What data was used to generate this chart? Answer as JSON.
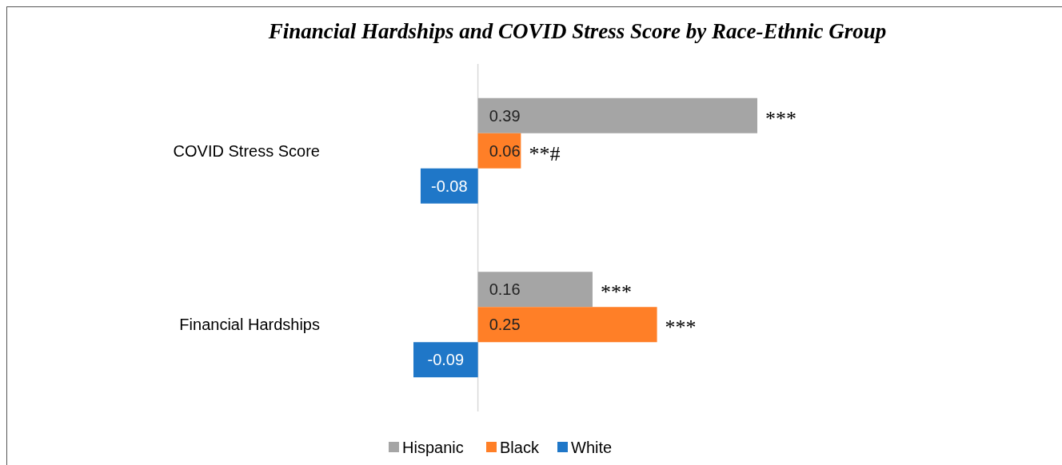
{
  "chart_data": {
    "type": "bar",
    "orientation": "horizontal",
    "title": "Financial Hardships and COVID Stress Score by Race-Ethnic Group",
    "categories": [
      "COVID Stress Score",
      "Financial Hardships"
    ],
    "series": [
      {
        "name": "Hispanic",
        "color": "#a5a5a5",
        "values": [
          0.39,
          0.16
        ]
      },
      {
        "name": "Black",
        "color": "#ff7f27",
        "values": [
          0.06,
          0.25
        ]
      },
      {
        "name": "White",
        "color": "#1f77c8",
        "values": [
          -0.08,
          -0.09
        ]
      }
    ],
    "data_labels": true,
    "legend": "bottom",
    "annotations": [
      "***",
      "**#",
      "***",
      "***"
    ]
  }
}
